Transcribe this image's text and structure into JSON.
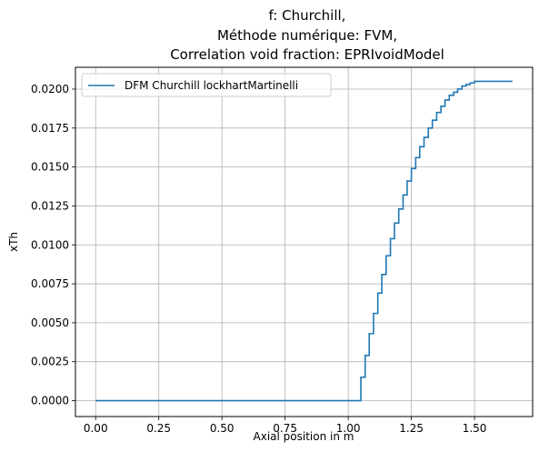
{
  "chart_data": {
    "type": "line",
    "title_lines": [
      "f: Churchill,",
      "Méthode numérique: FVM,",
      "Correlation void fraction: EPRIvoidModel"
    ],
    "xlabel": "Axial position in m",
    "ylabel": "xTh",
    "xlim": [
      -0.08,
      1.73
    ],
    "ylim": [
      -0.00102,
      0.0214
    ],
    "x_ticks": [
      0.0,
      0.25,
      0.5,
      0.75,
      1.0,
      1.25,
      1.5
    ],
    "x_tick_labels": [
      "0.00",
      "0.25",
      "0.50",
      "0.75",
      "1.00",
      "1.25",
      "1.50"
    ],
    "y_ticks": [
      0.0,
      0.0025,
      0.005,
      0.0075,
      0.01,
      0.0125,
      0.015,
      0.0175,
      0.02
    ],
    "y_tick_labels": [
      "0.0000",
      "0.0025",
      "0.0050",
      "0.0075",
      "0.0100",
      "0.0125",
      "0.0150",
      "0.0175",
      "0.0200"
    ],
    "grid": true,
    "legend_position": "top-left",
    "step": "post",
    "series": [
      {
        "name": "DFM Churchill lockhartMartinelli",
        "color": "#1f77b4",
        "x": [
          0.0,
          1.05,
          1.067,
          1.083,
          1.1,
          1.117,
          1.133,
          1.15,
          1.167,
          1.183,
          1.2,
          1.217,
          1.233,
          1.25,
          1.267,
          1.283,
          1.3,
          1.317,
          1.333,
          1.35,
          1.367,
          1.383,
          1.4,
          1.417,
          1.433,
          1.45,
          1.467,
          1.483,
          1.5,
          1.517,
          1.533,
          1.55,
          1.567,
          1.583,
          1.6,
          1.617,
          1.633,
          1.65
        ],
        "y": [
          0.0,
          0.0015,
          0.0029,
          0.0043,
          0.0056,
          0.0069,
          0.0081,
          0.0093,
          0.0104,
          0.0114,
          0.0123,
          0.0132,
          0.0141,
          0.0149,
          0.0156,
          0.0163,
          0.0169,
          0.0175,
          0.018,
          0.0185,
          0.0189,
          0.0193,
          0.0196,
          0.0198,
          0.02,
          0.0202,
          0.0203,
          0.0204,
          0.0205,
          0.0205,
          0.0205,
          0.0205,
          0.0205,
          0.0205,
          0.0205,
          0.0205,
          0.0205,
          0.0205
        ]
      }
    ]
  }
}
